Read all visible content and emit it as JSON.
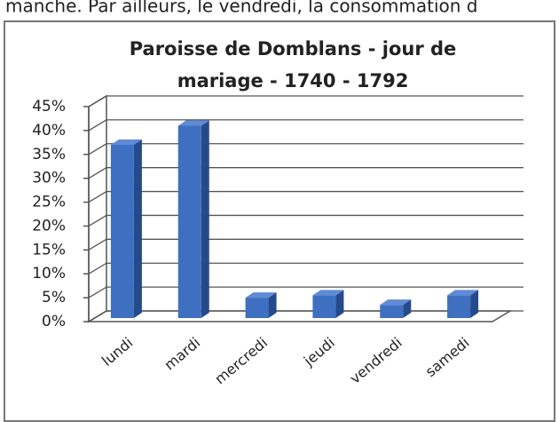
{
  "header_text": "manche. Par ailleurs, le vendredi, la consommation d",
  "chart_data": {
    "type": "bar3d",
    "title": [
      "Paroisse de Domblans - jour de",
      "mariage - 1740 - 1792"
    ],
    "categories": [
      "lundi",
      "mardi",
      "mercredi",
      "jeudi",
      "vendredi",
      "samedi"
    ],
    "values": [
      37,
      41,
      5,
      5.5,
      3.5,
      5.5
    ],
    "color": "#3f6fc0",
    "ylim": [
      0,
      45
    ],
    "yticks": [
      {
        "value": 0,
        "label": "0%"
      },
      {
        "value": 5,
        "label": "5%"
      },
      {
        "value": 10,
        "label": "10%"
      },
      {
        "value": 15,
        "label": "15%"
      },
      {
        "value": 20,
        "label": "20%"
      },
      {
        "value": 25,
        "label": "25%"
      },
      {
        "value": 30,
        "label": "30%"
      },
      {
        "value": 35,
        "label": "35%"
      },
      {
        "value": 40,
        "label": "40%"
      },
      {
        "value": 45,
        "label": "45%"
      }
    ],
    "grid": true
  }
}
